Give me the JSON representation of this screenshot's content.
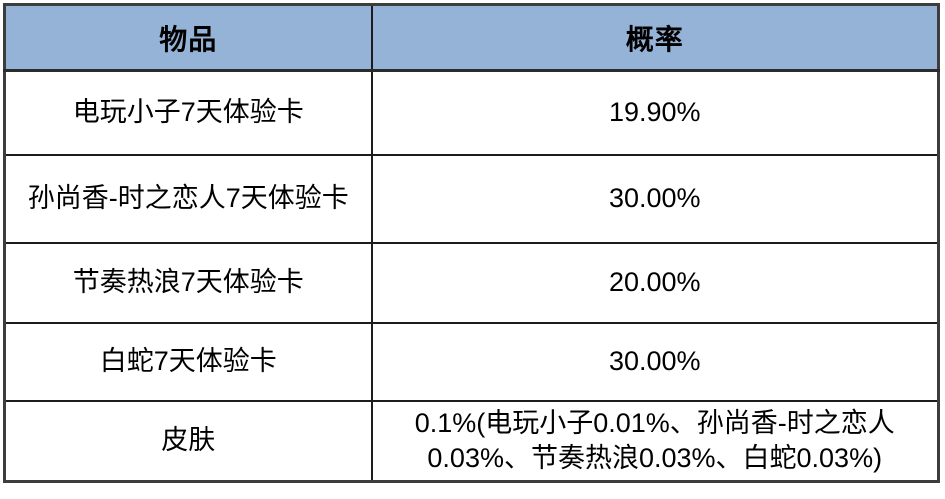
{
  "table": {
    "headers": [
      {
        "label": "物品"
      },
      {
        "label": "概率"
      }
    ],
    "rows": [
      {
        "item": "电玩小子7天体验卡",
        "probability": "19.90%"
      },
      {
        "item": "孙尚香-时之恋人7天体验卡",
        "probability": "30.00%"
      },
      {
        "item": "节奏热浪7天体验卡",
        "probability": "20.00%"
      },
      {
        "item": "白蛇7天体验卡",
        "probability": "30.00%"
      },
      {
        "item": "皮肤",
        "probability": "0.1%(电玩小子0.01%、孙尚香-时之恋人0.03%、节奏热浪0.03%、白蛇0.03%)"
      }
    ],
    "colors": {
      "header_bg": "#95B3D7",
      "inner_border": "#1c1c1c",
      "outer_border": "#3d3d3d",
      "text": "#000000",
      "cell_bg": "#ffffff"
    }
  }
}
